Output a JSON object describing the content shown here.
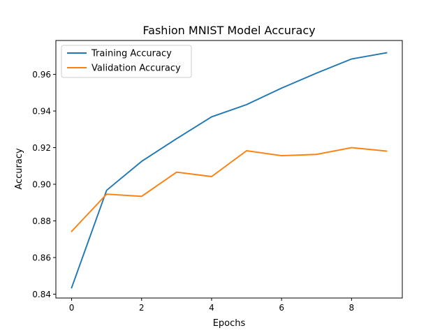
{
  "chart_data": {
    "type": "line",
    "title": "Fashion MNIST Model Accuracy",
    "xlabel": "Epochs",
    "ylabel": "Accuracy",
    "x": [
      0,
      1,
      2,
      3,
      4,
      5,
      6,
      7,
      8,
      9
    ],
    "xlim": [
      -0.45,
      9.45
    ],
    "ylim": [
      0.8379,
      0.9785
    ],
    "xticks": [
      0,
      2,
      4,
      6,
      8
    ],
    "yticks": [
      0.84,
      0.86,
      0.88,
      0.9,
      0.92,
      0.94,
      0.96
    ],
    "ytick_labels": [
      "0.84",
      "0.86",
      "0.88",
      "0.90",
      "0.92",
      "0.94",
      "0.96"
    ],
    "grid": false,
    "legend_position": "upper-left",
    "series": [
      {
        "name": "Training Accuracy",
        "color": "#1f77b4",
        "values": [
          0.8435,
          0.8967,
          0.9125,
          0.9249,
          0.9368,
          0.9435,
          0.9525,
          0.9607,
          0.9684,
          0.9718
        ]
      },
      {
        "name": "Validation Accuracy",
        "color": "#ff7f0e",
        "values": [
          0.8743,
          0.8946,
          0.8934,
          0.9066,
          0.9042,
          0.9183,
          0.9156,
          0.9163,
          0.92,
          0.9181
        ]
      }
    ]
  }
}
